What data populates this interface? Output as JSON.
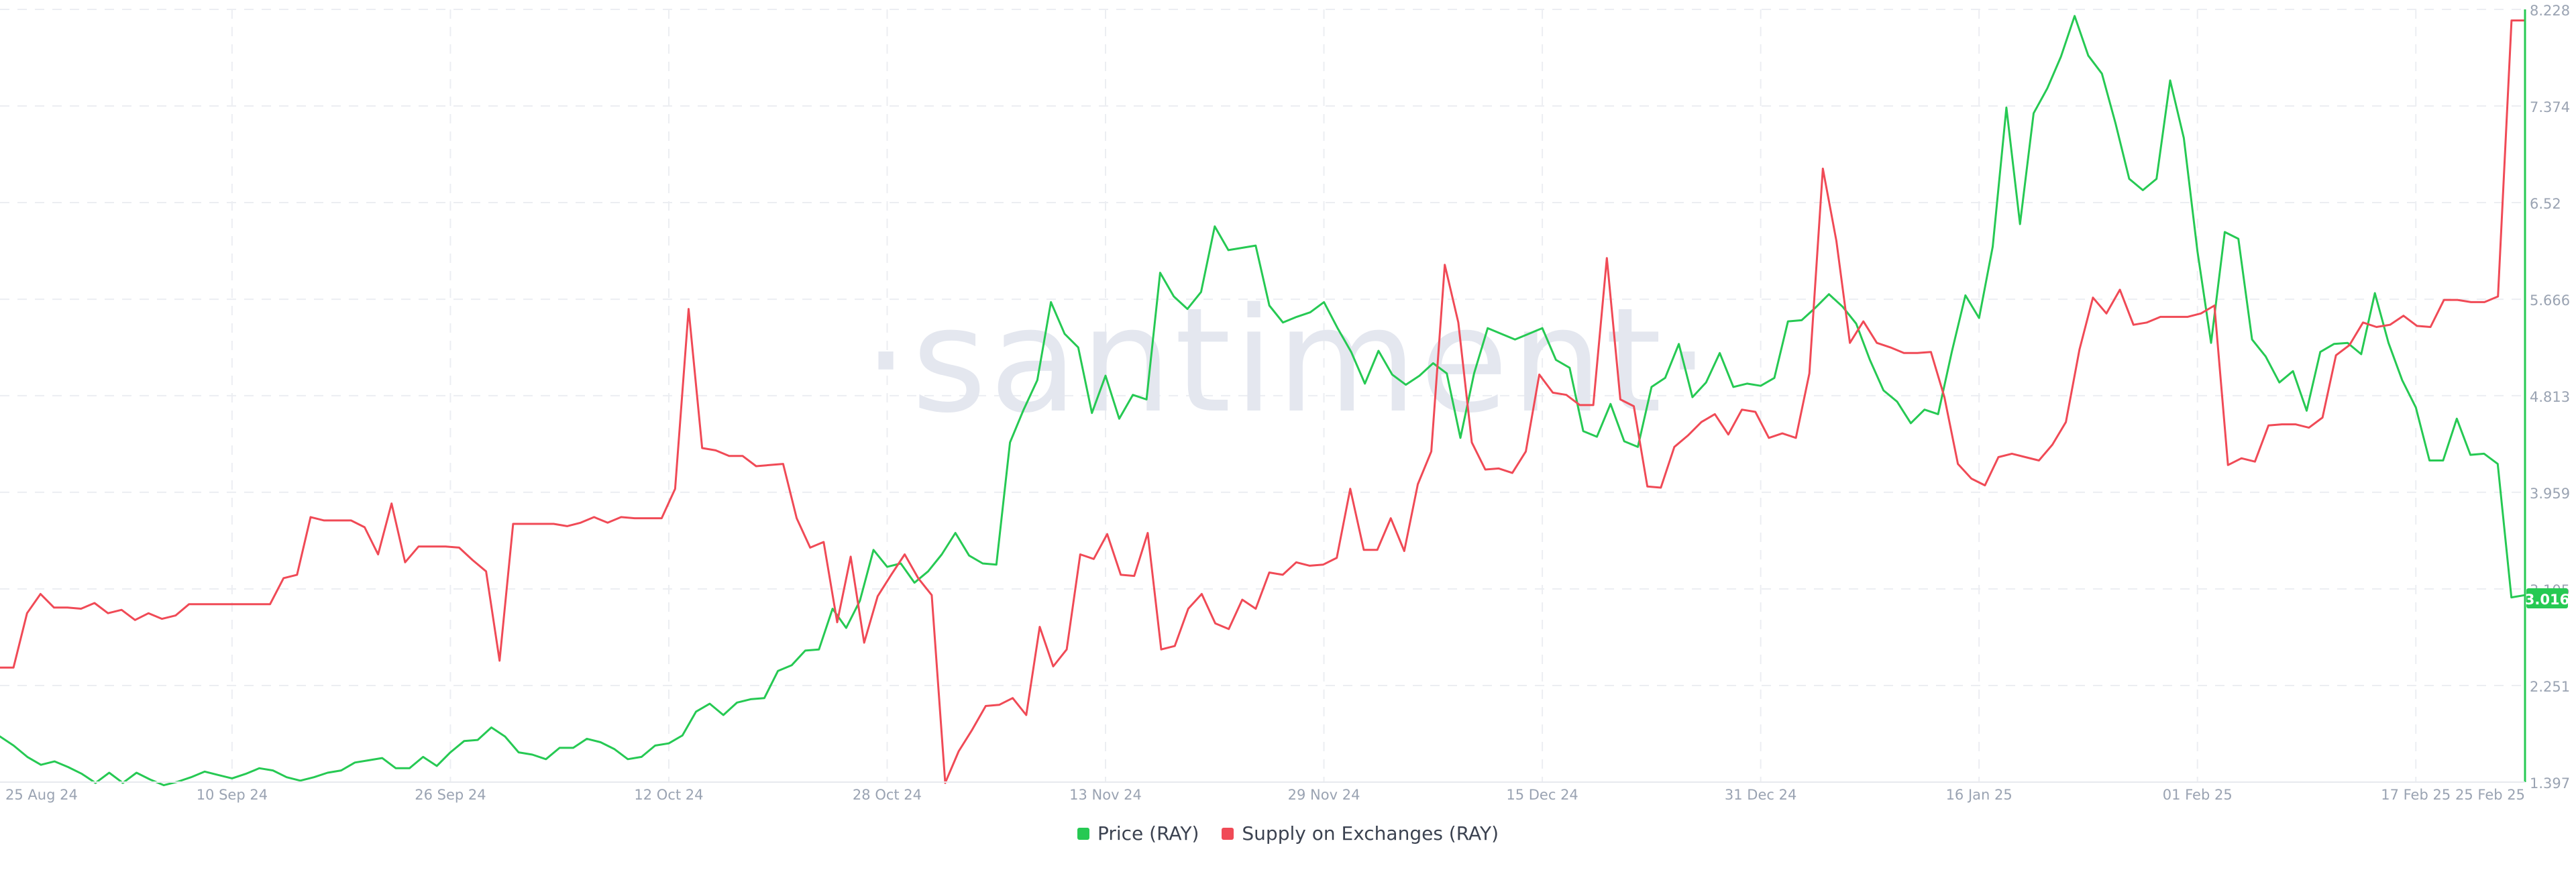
{
  "chart_data": {
    "type": "line",
    "title": "",
    "watermark": "·santiment·",
    "x_labels": [
      "25 Aug 24",
      "10 Sep 24",
      "26 Sep 24",
      "12 Oct 24",
      "28 Oct 24",
      "13 Nov 24",
      "29 Nov 24",
      "15 Dec 24",
      "31 Dec 24",
      "16 Jan 25",
      "01 Feb 25",
      "17 Feb 25",
      "25 Feb 25"
    ],
    "xlim": [
      "2024-08-24",
      "2025-02-25"
    ],
    "y_right": {
      "ticks": [
        "1.397",
        "2.251",
        "3.105",
        "3.959",
        "4.813",
        "5.666",
        "6.52",
        "7.374",
        "8.228"
      ],
      "ylim": [
        1.397,
        8.228
      ],
      "last_value": "3.016"
    },
    "grid": true,
    "legend_position": "bottom-center",
    "series": [
      {
        "name": "Price (RAY)",
        "color": "#26c953",
        "axis": "right",
        "values": [
          1.8,
          1.72,
          1.62,
          1.55,
          1.58,
          1.53,
          1.47,
          1.39,
          1.48,
          1.39,
          1.48,
          1.42,
          1.37,
          1.4,
          1.44,
          1.49,
          1.46,
          1.43,
          1.47,
          1.52,
          1.5,
          1.44,
          1.41,
          1.44,
          1.48,
          1.5,
          1.57,
          1.59,
          1.61,
          1.52,
          1.52,
          1.62,
          1.54,
          1.66,
          1.76,
          1.77,
          1.88,
          1.8,
          1.66,
          1.64,
          1.6,
          1.7,
          1.7,
          1.78,
          1.75,
          1.69,
          1.6,
          1.62,
          1.72,
          1.74,
          1.81,
          2.02,
          2.09,
          1.99,
          2.1,
          2.13,
          2.14,
          2.38,
          2.43,
          2.56,
          2.57,
          2.93,
          2.76,
          3.0,
          3.45,
          3.3,
          3.33,
          3.16,
          3.26,
          3.41,
          3.6,
          3.4,
          3.33,
          3.32,
          4.4,
          4.69,
          4.95,
          5.64,
          5.36,
          5.24,
          4.66,
          4.99,
          4.61,
          4.82,
          4.78,
          5.9,
          5.69,
          5.58,
          5.73,
          6.31,
          6.1,
          6.12,
          6.14,
          5.61,
          5.46,
          5.51,
          5.55,
          5.64,
          5.41,
          5.2,
          4.92,
          5.21,
          5.0,
          4.91,
          4.99,
          5.1,
          5.01,
          4.44,
          5.01,
          5.41,
          5.36,
          5.31,
          5.36,
          5.41,
          5.13,
          5.06,
          4.5,
          4.45,
          4.74,
          4.41,
          4.36,
          4.89,
          4.97,
          5.27,
          4.8,
          4.93,
          5.19,
          4.89,
          4.92,
          4.9,
          4.97,
          5.47,
          5.48,
          5.59,
          5.71,
          5.6,
          5.45,
          5.13,
          4.86,
          4.76,
          4.57,
          4.69,
          4.65,
          5.2,
          5.7,
          5.5,
          6.13,
          7.36,
          6.33,
          7.31,
          7.53,
          7.81,
          8.17,
          7.82,
          7.66,
          7.22,
          6.73,
          6.63,
          6.73,
          7.6,
          7.09,
          6.09,
          5.28,
          6.26,
          6.2,
          5.31,
          5.16,
          4.93,
          5.03,
          4.68,
          5.2,
          5.27,
          5.28,
          5.18,
          5.72,
          5.28,
          4.95,
          4.71,
          4.24,
          4.24,
          4.61,
          4.29,
          4.3,
          4.21,
          3.03,
          3.05
        ]
      },
      {
        "name": "Supply on Exchanges (RAY)",
        "color": "#f04a56",
        "axis": "hidden",
        "values": [
          2.41,
          2.41,
          2.89,
          3.06,
          2.94,
          2.94,
          2.93,
          2.98,
          2.89,
          2.92,
          2.83,
          2.89,
          2.84,
          2.87,
          2.97,
          2.97,
          2.97,
          2.97,
          2.97,
          2.97,
          2.97,
          3.2,
          3.23,
          3.74,
          3.71,
          3.71,
          3.71,
          3.65,
          3.41,
          3.86,
          3.34,
          3.48,
          3.48,
          3.48,
          3.47,
          3.36,
          3.26,
          2.47,
          3.68,
          3.68,
          3.68,
          3.68,
          3.66,
          3.69,
          3.74,
          3.69,
          3.74,
          3.73,
          3.73,
          3.73,
          3.99,
          5.58,
          4.35,
          4.33,
          4.28,
          4.28,
          4.19,
          4.2,
          4.21,
          3.73,
          3.47,
          3.52,
          2.81,
          3.39,
          2.63,
          3.04,
          3.23,
          3.41,
          3.2,
          3.05,
          1.39,
          1.67,
          1.86,
          2.07,
          2.08,
          2.14,
          1.99,
          2.77,
          2.42,
          2.57,
          3.41,
          3.37,
          3.59,
          3.23,
          3.22,
          3.6,
          2.57,
          2.6,
          2.93,
          3.06,
          2.8,
          2.75,
          3.01,
          2.93,
          3.25,
          3.23,
          3.34,
          3.31,
          3.32,
          3.38,
          3.99,
          3.45,
          3.45,
          3.73,
          3.44,
          4.03,
          4.32,
          5.97,
          5.46,
          4.4,
          4.16,
          4.17,
          4.13,
          4.32,
          5.0,
          4.84,
          4.82,
          4.73,
          4.73,
          6.03,
          4.78,
          4.72,
          4.01,
          4.0,
          4.36,
          4.46,
          4.58,
          4.65,
          4.47,
          4.69,
          4.67,
          4.44,
          4.48,
          4.44,
          5.01,
          6.82,
          6.18,
          5.28,
          5.47,
          5.28,
          5.24,
          5.19,
          5.19,
          5.2,
          4.8,
          4.21,
          4.08,
          4.02,
          4.27,
          4.3,
          4.27,
          4.24,
          4.38,
          4.58,
          5.22,
          5.68,
          5.54,
          5.75,
          5.44,
          5.46,
          5.51,
          5.51,
          5.51,
          5.54,
          5.61,
          4.2,
          4.26,
          4.23,
          4.55,
          4.56,
          4.56,
          4.53,
          4.62,
          5.17,
          5.26,
          5.46,
          5.42,
          5.44,
          5.52,
          5.43,
          5.42,
          5.66,
          5.66,
          5.64,
          5.64,
          5.69,
          8.13,
          8.13
        ]
      }
    ]
  },
  "legend": {
    "price_label": "Price (RAY)",
    "supply_label": "Supply on Exchanges (RAY)"
  }
}
